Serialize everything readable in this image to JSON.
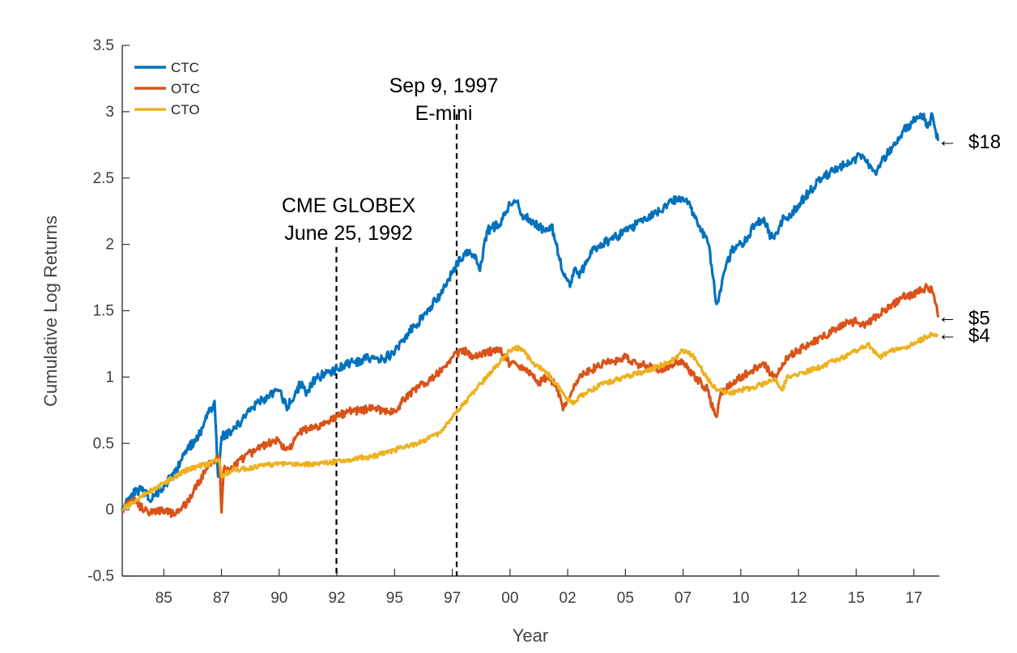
{
  "chart_data": {
    "type": "line",
    "title": "",
    "xlabel": "Year",
    "ylabel": "Cumulative Log Returns",
    "xlim": [
      1983.2,
      2018.6
    ],
    "ylim": [
      -0.5,
      3.5
    ],
    "x_ticks": [
      {
        "value": 1985,
        "label": "85"
      },
      {
        "value": 1987.5,
        "label": "87"
      },
      {
        "value": 1990,
        "label": "90"
      },
      {
        "value": 1992.5,
        "label": "92"
      },
      {
        "value": 1995,
        "label": "95"
      },
      {
        "value": 1997.5,
        "label": "97"
      },
      {
        "value": 2000,
        "label": "00"
      },
      {
        "value": 2002.5,
        "label": "02"
      },
      {
        "value": 2005,
        "label": "05"
      },
      {
        "value": 2007.5,
        "label": "07"
      },
      {
        "value": 2010,
        "label": "10"
      },
      {
        "value": 2012.5,
        "label": "12"
      },
      {
        "value": 2015,
        "label": "15"
      },
      {
        "value": 2017.5,
        "label": "17"
      }
    ],
    "y_ticks": [
      {
        "value": -0.5,
        "label": "-0.5"
      },
      {
        "value": 0,
        "label": "0"
      },
      {
        "value": 0.5,
        "label": "0.5"
      },
      {
        "value": 1,
        "label": "1"
      },
      {
        "value": 1.5,
        "label": "1.5"
      },
      {
        "value": 2,
        "label": "2"
      },
      {
        "value": 2.5,
        "label": "2.5"
      },
      {
        "value": 3,
        "label": "3"
      },
      {
        "value": 3.5,
        "label": "3.5"
      }
    ],
    "grid": false,
    "legend": {
      "position": "top-left"
    },
    "series": [
      {
        "name": "CTC",
        "color": "#0072BD",
        "x": [
          1983.2,
          1983.6,
          1984.0,
          1984.5,
          1985.0,
          1985.5,
          1986.0,
          1986.5,
          1987.0,
          1987.2,
          1987.35,
          1987.5,
          1988.0,
          1988.5,
          1989.0,
          1989.5,
          1990.0,
          1990.3,
          1990.6,
          1990.9,
          1991.2,
          1991.6,
          1992.0,
          1992.5,
          1993.0,
          1993.5,
          1994.0,
          1994.5,
          1995.0,
          1995.5,
          1996.0,
          1996.5,
          1997.0,
          1997.5,
          1998.0,
          1998.5,
          1998.7,
          1999.0,
          1999.5,
          2000.0,
          2000.3,
          2000.6,
          2001.0,
          2001.5,
          2001.8,
          2002.0,
          2002.3,
          2002.6,
          2002.8,
          2003.0,
          2003.5,
          2004.0,
          2004.5,
          2005.0,
          2005.5,
          2006.0,
          2006.5,
          2007.0,
          2007.5,
          2007.8,
          2008.0,
          2008.3,
          2008.6,
          2008.8,
          2008.95,
          2009.1,
          2009.3,
          2009.6,
          2010.0,
          2010.3,
          2010.6,
          2011.0,
          2011.3,
          2011.6,
          2011.8,
          2012.0,
          2012.5,
          2013.0,
          2013.5,
          2014.0,
          2014.5,
          2015.0,
          2015.3,
          2015.6,
          2015.9,
          2016.1,
          2016.4,
          2016.7,
          2017.0,
          2017.3,
          2017.6,
          2017.9,
          2018.1,
          2018.3,
          2018.45,
          2018.55
        ],
        "y": [
          0.0,
          0.12,
          0.15,
          0.08,
          0.18,
          0.28,
          0.45,
          0.55,
          0.75,
          0.82,
          0.25,
          0.55,
          0.6,
          0.7,
          0.8,
          0.85,
          0.9,
          0.78,
          0.82,
          0.95,
          0.88,
          1.0,
          1.02,
          1.06,
          1.1,
          1.12,
          1.15,
          1.14,
          1.18,
          1.32,
          1.4,
          1.52,
          1.62,
          1.8,
          1.93,
          1.92,
          1.8,
          2.1,
          2.15,
          2.3,
          2.32,
          2.2,
          2.18,
          2.1,
          2.15,
          2.0,
          1.78,
          1.68,
          1.82,
          1.75,
          1.95,
          2.0,
          2.05,
          2.1,
          2.15,
          2.2,
          2.25,
          2.32,
          2.35,
          2.3,
          2.2,
          2.1,
          2.0,
          1.75,
          1.55,
          1.65,
          1.8,
          1.95,
          2.0,
          2.05,
          2.15,
          2.2,
          2.05,
          2.08,
          2.18,
          2.2,
          2.3,
          2.4,
          2.5,
          2.55,
          2.6,
          2.65,
          2.66,
          2.6,
          2.55,
          2.62,
          2.7,
          2.75,
          2.85,
          2.9,
          2.95,
          2.98,
          2.88,
          2.98,
          2.85,
          2.78
        ]
      },
      {
        "name": "OTC",
        "color": "#D95319",
        "x": [
          1983.2,
          1983.6,
          1984.0,
          1984.5,
          1985.0,
          1985.5,
          1986.0,
          1986.5,
          1987.0,
          1987.4,
          1987.5,
          1987.6,
          1988.0,
          1988.5,
          1989.0,
          1989.5,
          1990.0,
          1990.3,
          1990.6,
          1991.0,
          1991.5,
          1992.0,
          1992.5,
          1993.0,
          1993.5,
          1994.0,
          1994.5,
          1995.0,
          1995.5,
          1996.0,
          1996.5,
          1997.0,
          1997.5,
          1998.0,
          1998.5,
          1999.0,
          1999.5,
          2000.0,
          2000.4,
          2000.8,
          2001.2,
          2001.6,
          2002.0,
          2002.3,
          2002.6,
          2003.0,
          2003.5,
          2004.0,
          2004.5,
          2005.0,
          2005.5,
          2006.0,
          2006.5,
          2007.0,
          2007.5,
          2008.0,
          2008.3,
          2008.6,
          2008.8,
          2008.95,
          2009.1,
          2009.3,
          2009.6,
          2010.0,
          2010.5,
          2011.0,
          2011.4,
          2011.7,
          2012.0,
          2012.5,
          2013.0,
          2013.5,
          2014.0,
          2014.5,
          2015.0,
          2015.4,
          2015.8,
          2016.2,
          2016.6,
          2017.0,
          2017.4,
          2017.8,
          2018.1,
          2018.3,
          2018.45,
          2018.55
        ],
        "y": [
          0.0,
          0.08,
          0.02,
          -0.03,
          0.0,
          -0.04,
          0.05,
          0.2,
          0.35,
          0.4,
          -0.02,
          0.3,
          0.32,
          0.4,
          0.45,
          0.5,
          0.52,
          0.45,
          0.5,
          0.6,
          0.62,
          0.65,
          0.7,
          0.74,
          0.75,
          0.76,
          0.75,
          0.74,
          0.85,
          0.92,
          0.98,
          1.05,
          1.15,
          1.2,
          1.15,
          1.18,
          1.22,
          1.1,
          1.08,
          1.05,
          0.95,
          1.0,
          0.95,
          0.75,
          0.85,
          1.0,
          1.05,
          1.1,
          1.12,
          1.15,
          1.1,
          1.08,
          1.05,
          1.1,
          1.12,
          1.0,
          0.95,
          0.9,
          0.75,
          0.7,
          0.85,
          0.9,
          0.95,
          1.0,
          1.05,
          1.1,
          1.0,
          1.05,
          1.15,
          1.2,
          1.25,
          1.3,
          1.35,
          1.4,
          1.42,
          1.4,
          1.45,
          1.5,
          1.55,
          1.6,
          1.62,
          1.65,
          1.68,
          1.64,
          1.55,
          1.45
        ]
      },
      {
        "name": "CTO",
        "color": "#EDB120",
        "x": [
          1983.2,
          1984.0,
          1985.0,
          1986.0,
          1987.0,
          1987.4,
          1987.5,
          1988.0,
          1989.0,
          1990.0,
          1991.0,
          1992.0,
          1993.0,
          1994.0,
          1995.0,
          1996.0,
          1997.0,
          1997.5,
          1998.0,
          1998.5,
          1999.0,
          1999.5,
          2000.0,
          2000.3,
          2000.6,
          2001.0,
          2001.5,
          2002.0,
          2002.4,
          2002.7,
          2003.0,
          2003.5,
          2004.0,
          2005.0,
          2006.0,
          2007.0,
          2007.5,
          2008.0,
          2008.5,
          2009.0,
          2009.5,
          2010.0,
          2010.5,
          2011.0,
          2011.5,
          2011.8,
          2012.0,
          2012.5,
          2013.0,
          2013.5,
          2014.0,
          2014.5,
          2015.0,
          2015.5,
          2016.0,
          2016.5,
          2017.0,
          2017.5,
          2018.0,
          2018.3,
          2018.55
        ],
        "y": [
          0.0,
          0.1,
          0.2,
          0.3,
          0.35,
          0.38,
          0.25,
          0.3,
          0.32,
          0.35,
          0.34,
          0.35,
          0.38,
          0.4,
          0.45,
          0.5,
          0.58,
          0.7,
          0.8,
          0.9,
          1.0,
          1.1,
          1.2,
          1.22,
          1.2,
          1.1,
          1.05,
          0.95,
          0.85,
          0.8,
          0.85,
          0.9,
          0.95,
          1.0,
          1.05,
          1.12,
          1.2,
          1.15,
          1.0,
          0.9,
          0.88,
          0.9,
          0.92,
          0.95,
          0.98,
          0.9,
          1.0,
          1.02,
          1.05,
          1.08,
          1.12,
          1.15,
          1.2,
          1.25,
          1.15,
          1.2,
          1.22,
          1.25,
          1.3,
          1.32,
          1.32
        ]
      }
    ],
    "vlines": [
      {
        "x": 1992.48,
        "label_lines": [
          "CME GLOBEX",
          "June 25, 1992"
        ]
      },
      {
        "x": 1997.69,
        "label_lines": [
          "Sep 9, 1997",
          "E-mini"
        ]
      }
    ],
    "end_labels": [
      {
        "series": "CTC",
        "text": "$18"
      },
      {
        "series": "OTC",
        "text": "$5"
      },
      {
        "series": "CTO",
        "text": "$4"
      }
    ],
    "end_arrow": "←"
  }
}
